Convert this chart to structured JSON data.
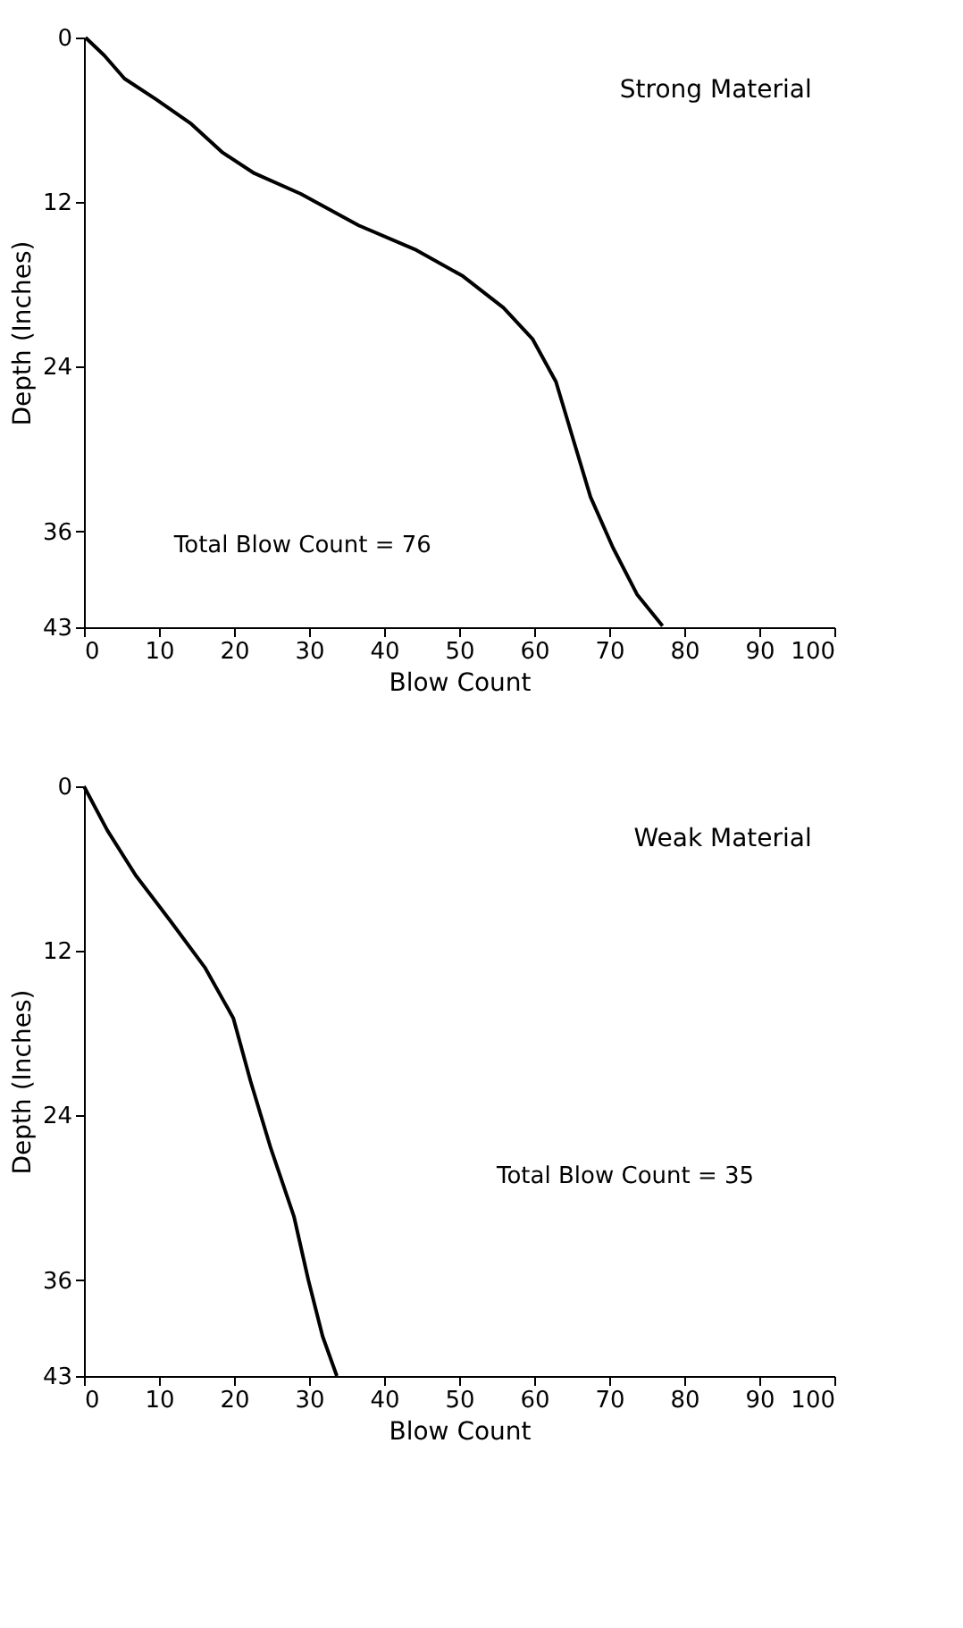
{
  "chart_data": [
    {
      "type": "line",
      "title": "Strong Material",
      "xlabel": "Blow Count",
      "ylabel": "Depth (Inches)",
      "xlim": [
        0,
        100
      ],
      "ylim": [
        43,
        0
      ],
      "xticks": [
        0,
        10,
        20,
        30,
        40,
        50,
        60,
        70,
        80,
        90,
        100
      ],
      "yticks": [
        0,
        12,
        24,
        36,
        43
      ],
      "grid": false,
      "marker": "none",
      "line_style": "solid",
      "annotations": [
        "Total Blow Count = 76"
      ],
      "series": [
        {
          "color": "#000000",
          "x": [
            0.2,
            2.7,
            5.4,
            9.6,
            14.3,
            18.5,
            22.7,
            28.9,
            36.6,
            44.3,
            50.5,
            55.9,
            59.8,
            62.9,
            65.2,
            67.5,
            70.5,
            73.7,
            77.1
          ],
          "values": [
            0,
            1.3,
            3.0,
            4.5,
            6.3,
            8.4,
            9.9,
            11.4,
            13.7,
            15.5,
            17.4,
            19.7,
            22.0,
            25.1,
            29.3,
            33.5,
            37.2,
            40.6,
            42.9
          ]
        }
      ]
    },
    {
      "type": "line",
      "title": "Weak Material",
      "xlabel": "Blow Count",
      "ylabel": "Depth (Inches)",
      "xlim": [
        0,
        100
      ],
      "ylim": [
        43,
        0
      ],
      "xticks": [
        0,
        10,
        20,
        30,
        40,
        50,
        60,
        70,
        80,
        90,
        100
      ],
      "yticks": [
        0,
        12,
        24,
        36,
        43
      ],
      "grid": false,
      "marker": "none",
      "line_style": "solid",
      "annotations": [
        "Total Blow Count = 35"
      ],
      "series": [
        {
          "color": "#000000",
          "x": [
            0,
            3.1,
            6.9,
            11.5,
            16.1,
            19.9,
            22.2,
            24.9,
            28.0,
            29.9,
            31.8,
            33.7
          ],
          "values": [
            0,
            3.2,
            6.5,
            9.8,
            13.2,
            16.9,
            21.5,
            26.4,
            31.4,
            36.0,
            40.1,
            43
          ]
        }
      ]
    }
  ]
}
